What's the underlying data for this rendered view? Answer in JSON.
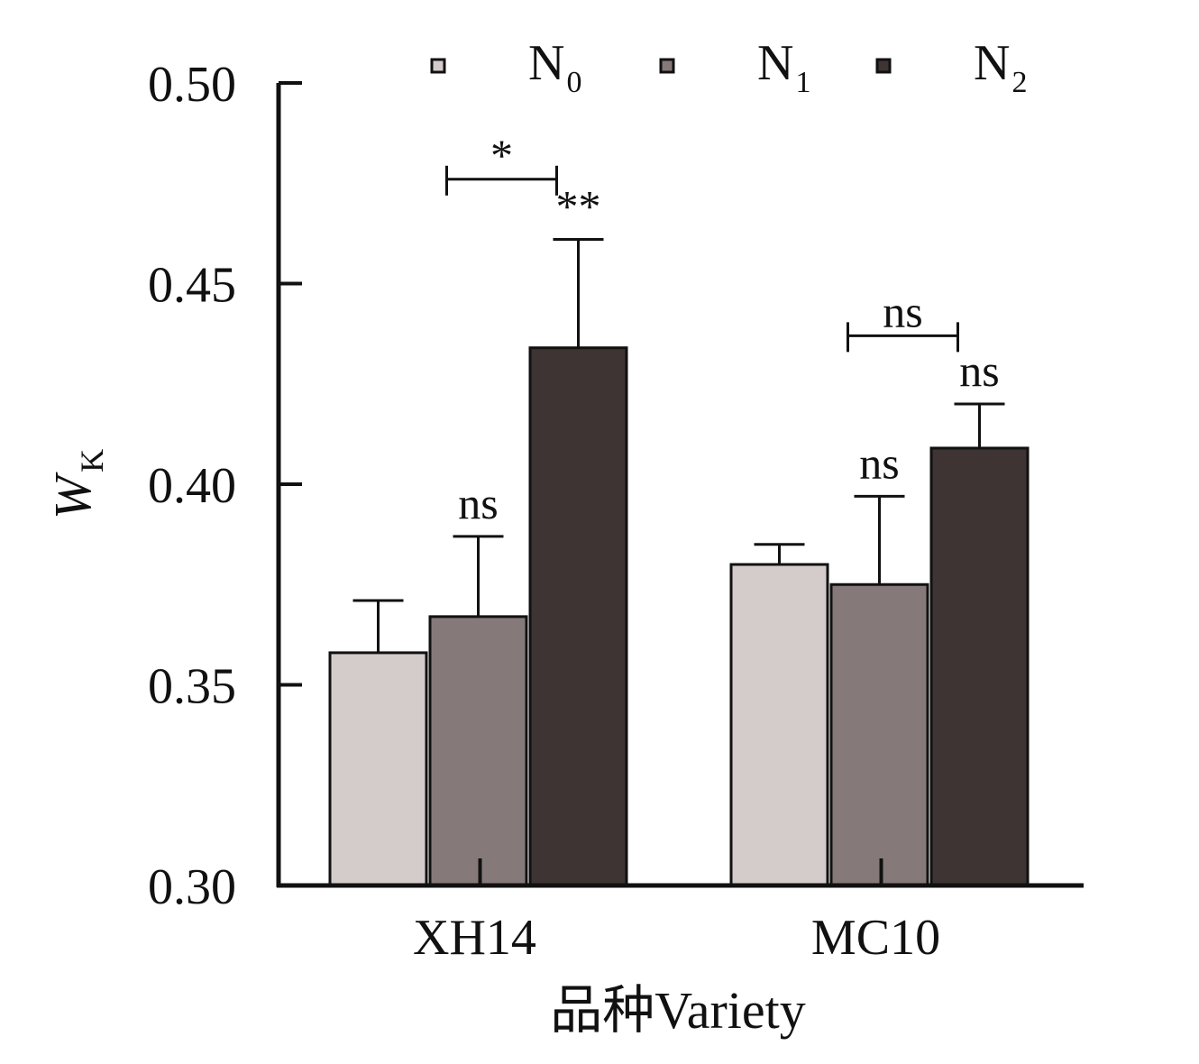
{
  "chart_data": {
    "type": "bar",
    "categories": [
      "XH14",
      "MC10"
    ],
    "series": [
      {
        "name": "N",
        "sub": "0",
        "color": "#d3ccca",
        "values": [
          0.358,
          0.38
        ],
        "errors": [
          0.013,
          0.005
        ]
      },
      {
        "name": "N",
        "sub": "1",
        "color": "#857a79",
        "values": [
          0.367,
          0.375
        ],
        "errors": [
          0.02,
          0.022
        ]
      },
      {
        "name": "N",
        "sub": "2",
        "color": "#3d3433",
        "values": [
          0.434,
          0.409
        ],
        "errors": [
          0.027,
          0.011
        ]
      }
    ],
    "bar_labels": [
      [
        "",
        "ns",
        "**"
      ],
      [
        "",
        "ns",
        "ns"
      ]
    ],
    "brackets": [
      {
        "category": 0,
        "from_series": 0,
        "to_series": 2,
        "label": "*",
        "y": 0.476
      },
      {
        "category": 1,
        "from_series": 0,
        "to_series": 2,
        "label": "ns",
        "y": 0.437
      }
    ],
    "ylabel": {
      "main": "W",
      "sub": "K"
    },
    "xlabel": "品种Variety",
    "ylim": [
      0.3,
      0.5
    ],
    "yticks": [
      "0.30",
      "0.35",
      "0.40",
      "0.45",
      "0.50"
    ],
    "legend_position": "top",
    "grid": false
  }
}
